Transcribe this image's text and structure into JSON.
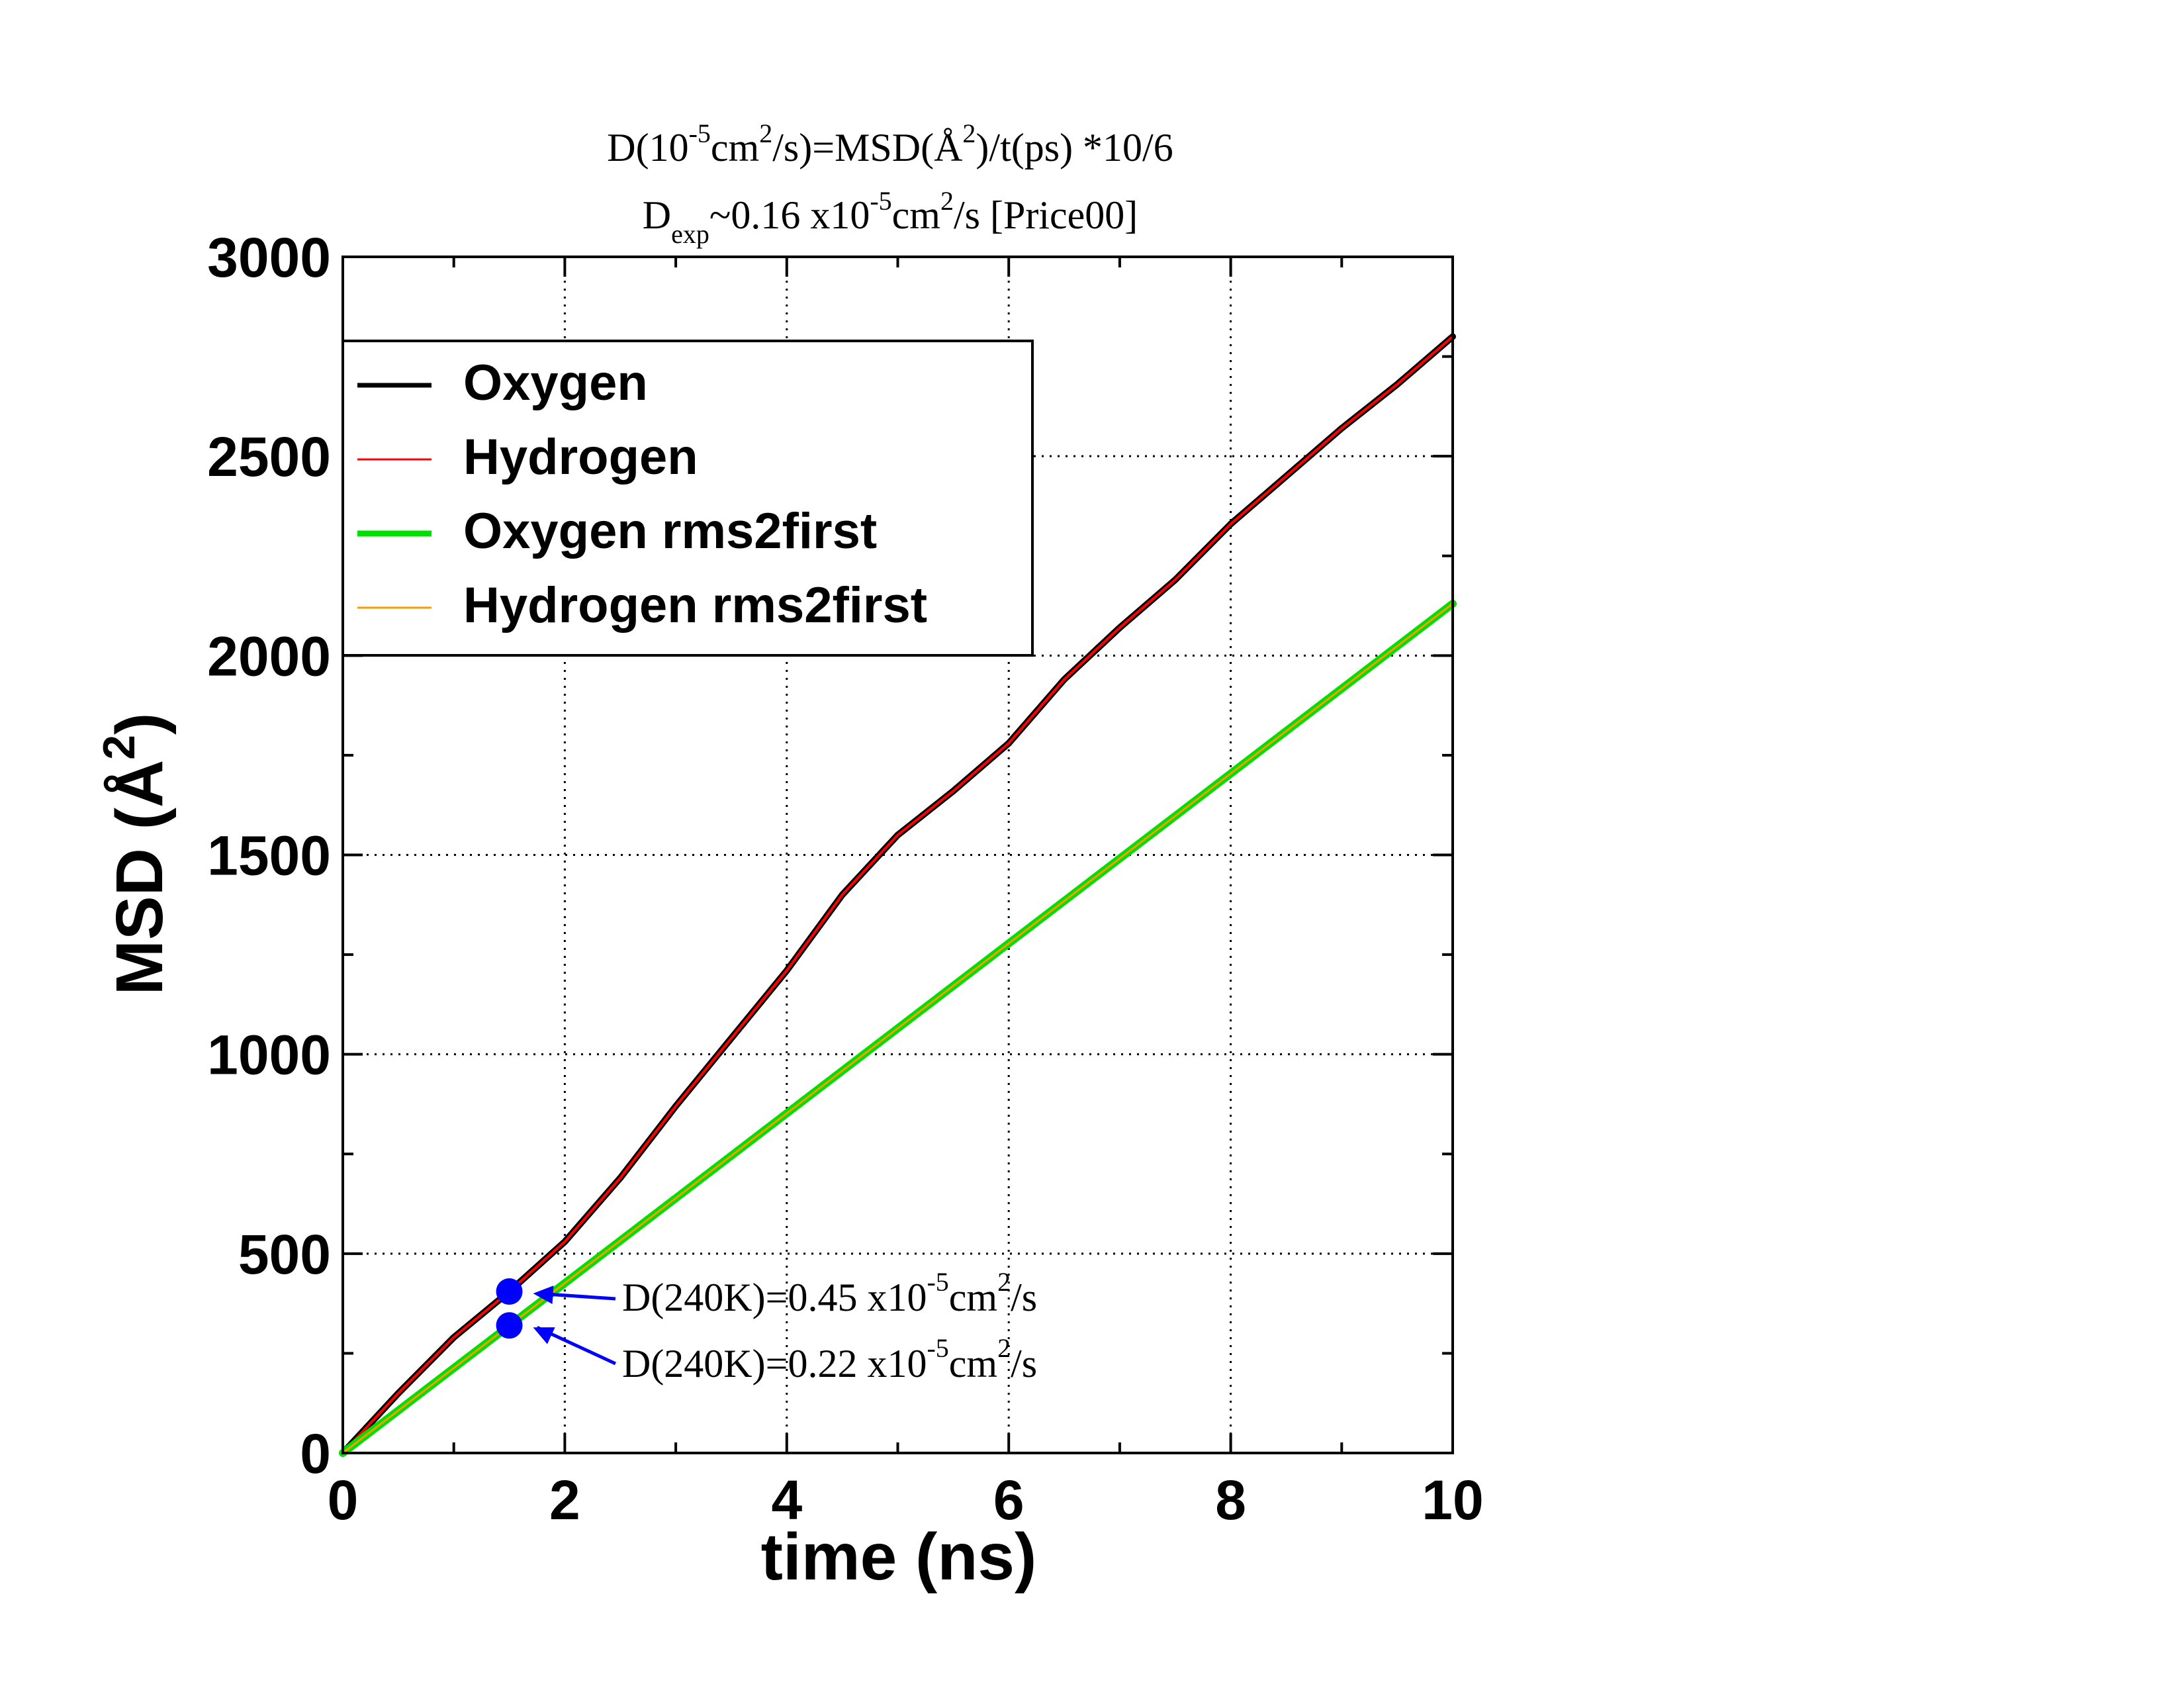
{
  "chart_data": {
    "type": "line",
    "title_line1": {
      "a": "D(10",
      "a_sup": "-5",
      "b": "cm",
      "b_sup": "2",
      "c": "/s)=MSD(Å",
      "c_sup": "2",
      "d": ")/t(ps) *10/6"
    },
    "title_line2": {
      "a": "D",
      "a_sub": "exp",
      "b": "~0.16 x10",
      "b_sup": "-5",
      "c": "cm",
      "c_sup": "2",
      "d": "/s [Price00]"
    },
    "xlabel": "time (ns)",
    "ylabel_main": "MSD (Å",
    "ylabel_sup": "2",
    "ylabel_close": ")",
    "xlim": [
      0,
      10
    ],
    "ylim": [
      0,
      3000
    ],
    "xticks": [
      0,
      2,
      4,
      6,
      8,
      10
    ],
    "yticks": [
      0,
      500,
      1000,
      1500,
      2000,
      2500,
      3000
    ],
    "xtick_labels": [
      "0",
      "2",
      "4",
      "6",
      "8",
      "10"
    ],
    "ytick_labels": [
      "0",
      "500",
      "1000",
      "1500",
      "2000",
      "2500",
      "3000"
    ],
    "grid": true,
    "legend_position": "top-left",
    "series": [
      {
        "name": "Oxygen",
        "color": "#000000",
        "x": [
          0,
          0.5,
          1,
          1.5,
          2,
          2.5,
          3,
          3.5,
          4,
          4.5,
          5,
          5.5,
          6,
          6.5,
          7,
          7.5,
          8,
          8.5,
          9,
          9.5,
          10
        ],
        "y": [
          0,
          150,
          290,
          405,
          530,
          690,
          870,
          1040,
          1210,
          1400,
          1550,
          1660,
          1780,
          1940,
          2070,
          2190,
          2330,
          2450,
          2570,
          2680,
          2800
        ]
      },
      {
        "name": "Hydrogen",
        "color": "#ff0000",
        "x": [
          0,
          0.5,
          1,
          1.5,
          2,
          2.5,
          3,
          3.5,
          4,
          4.5,
          5,
          5.5,
          6,
          6.5,
          7,
          7.5,
          8,
          8.5,
          9,
          9.5,
          10
        ],
        "y": [
          0,
          150,
          290,
          405,
          530,
          690,
          870,
          1040,
          1210,
          1400,
          1550,
          1660,
          1780,
          1940,
          2070,
          2190,
          2330,
          2450,
          2570,
          2680,
          2800
        ]
      },
      {
        "name": "Oxygen rms2first",
        "color": "#00e000",
        "x": [
          0,
          10
        ],
        "y": [
          0,
          2130
        ]
      },
      {
        "name": "Hydrogen rms2first",
        "color": "#ff9900",
        "x": [
          0,
          10
        ],
        "y": [
          0,
          2130
        ]
      }
    ],
    "annotations": [
      {
        "point": [
          1.5,
          405
        ],
        "color": "#0000ff",
        "text_a": "D(240K)=0.45 x10",
        "text_sup1": "-5",
        "text_b": "cm",
        "text_sup2": "2",
        "text_c": "/s"
      },
      {
        "point": [
          1.5,
          320
        ],
        "color": "#0000ff",
        "text_a": "D(240K)=0.22 x10",
        "text_sup1": "-5",
        "text_b": "cm",
        "text_sup2": "2",
        "text_c": "/s"
      }
    ]
  }
}
